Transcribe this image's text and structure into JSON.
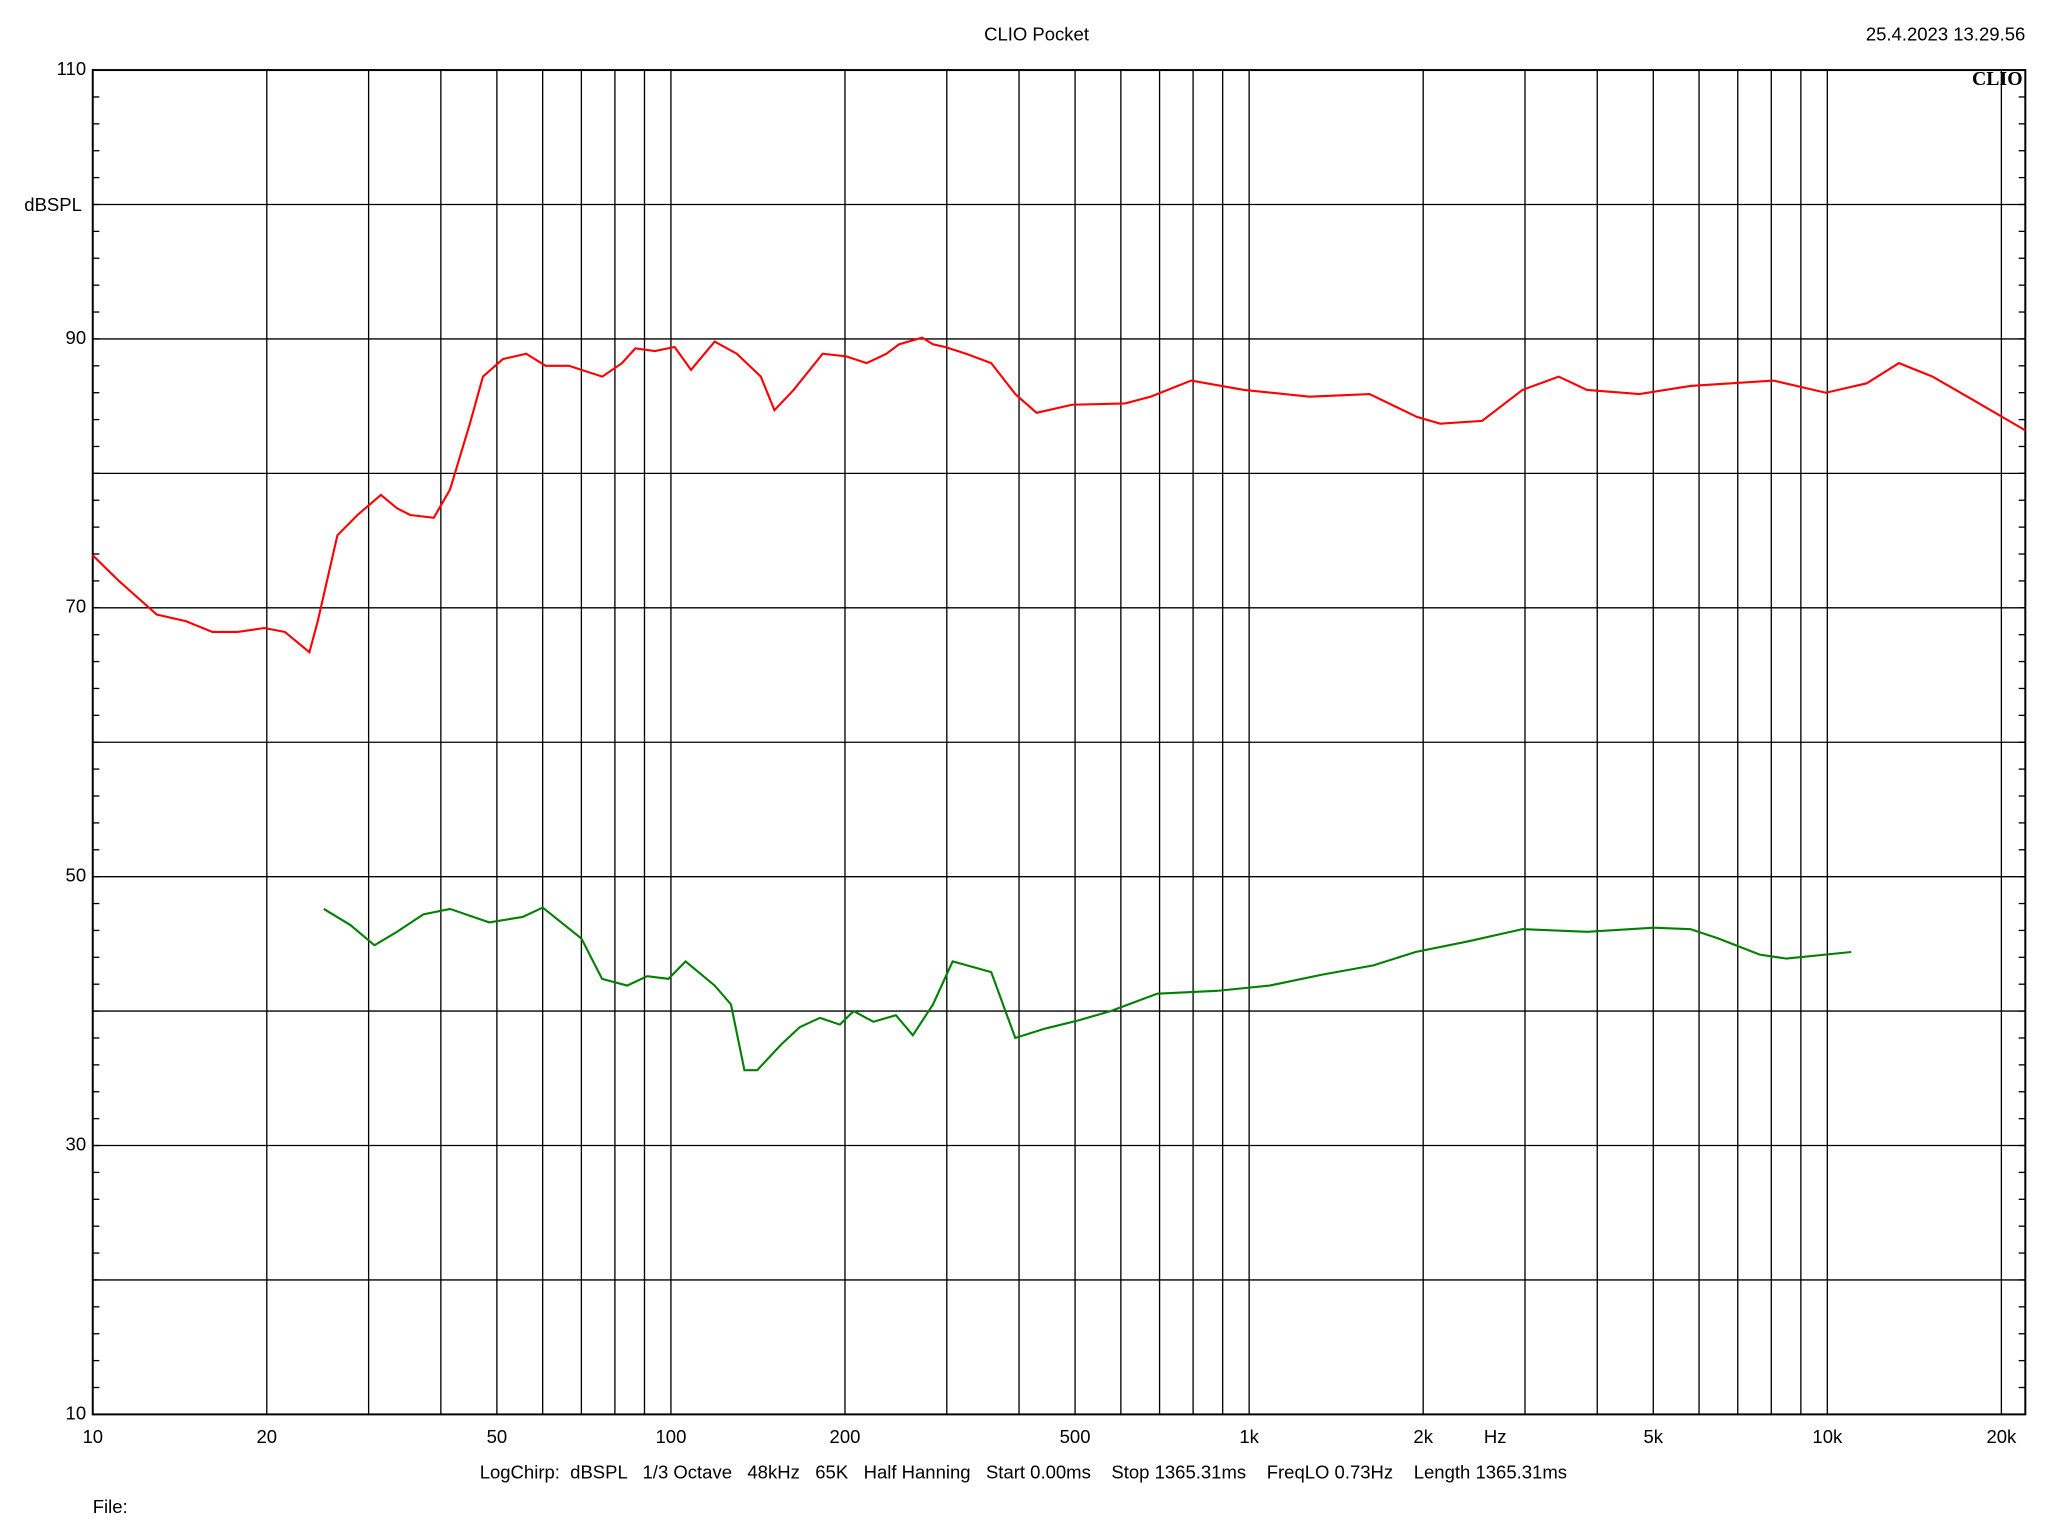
{
  "chart_data": {
    "type": "line",
    "title": "CLIO Pocket",
    "timestamp": "25.4.2023 13.29.56",
    "logo": "CLIO",
    "y_label": "dBSPL",
    "x_label": "Hz",
    "footer": "LogChirp:  dBSPL   1/3 Octave   48kHz   65K   Half Hanning   Start 0.00ms    Stop 1365.31ms    FreqLO 0.73Hz    Length 1365.31ms",
    "file_label": "File:",
    "log_x": true,
    "grid": true,
    "xlim": [
      10,
      22000
    ],
    "xticks": [
      10,
      20,
      50,
      100,
      200,
      500,
      {
        "value": 1000,
        "label": "1k"
      },
      {
        "value": 2000,
        "label": "2k"
      },
      {
        "value": 5000,
        "label": "5k"
      },
      {
        "value": 10000,
        "label": "10k"
      },
      {
        "value": 20000,
        "label": "20k"
      }
    ],
    "xminor": [
      30,
      40,
      60,
      70,
      80,
      90,
      300,
      400,
      600,
      700,
      800,
      900,
      3000,
      4000,
      6000,
      7000,
      8000,
      9000
    ],
    "ylim": [
      10,
      110
    ],
    "yticks": [
      10,
      30,
      50,
      70,
      90,
      110
    ],
    "yminor": [
      20,
      40,
      60,
      80,
      100
    ],
    "series": [
      {
        "color": "#ff0000",
        "x": [
          10,
          11.1,
          12.9,
          14.5,
          16.1,
          17.8,
          19.8,
          21.5,
          23.7,
          24.5,
          26.5,
          28.7,
          31.5,
          33.6,
          35.4,
          38.9,
          41.5,
          44.9,
          47.3,
          51.2,
          56.2,
          60.7,
          66.6,
          76.1,
          82.3,
          86.8,
          93.8,
          101.5,
          108.3,
          119,
          130,
          143,
          151,
          163,
          183,
          201,
          218,
          236,
          248,
          272,
          284,
          298,
          324,
          358,
          394,
          429,
          494,
          610,
          675,
          794,
          980,
          1272,
          1615,
          1950,
          2140,
          2530,
          2970,
          3430,
          3840,
          4730,
          5800,
          8070,
          9940,
          11700,
          13300,
          15200,
          17800,
          22000
        ],
        "values": [
          73.9,
          72.0,
          69.5,
          69.0,
          68.2,
          68.2,
          68.5,
          68.2,
          66.7,
          69.0,
          75.4,
          76.9,
          78.4,
          77.4,
          76.9,
          76.7,
          78.8,
          83.7,
          87.2,
          88.5,
          88.9,
          88.0,
          88.0,
          87.2,
          88.2,
          89.3,
          89.1,
          89.4,
          87.7,
          89.8,
          88.9,
          87.2,
          84.7,
          86.2,
          88.9,
          88.7,
          88.2,
          88.9,
          89.6,
          90.1,
          89.6,
          89.4,
          88.9,
          88.2,
          85.9,
          84.5,
          85.1,
          85.2,
          85.7,
          86.9,
          86.2,
          85.7,
          85.9,
          84.2,
          83.7,
          83.9,
          86.2,
          87.2,
          86.2,
          85.9,
          86.5,
          86.9,
          86.0,
          86.7,
          88.2,
          87.2,
          85.5,
          83.2
        ]
      },
      {
        "color": "#008000",
        "x": [
          25.1,
          27.9,
          30.7,
          33.6,
          37.3,
          41.5,
          48.5,
          55.4,
          60,
          70,
          76,
          84,
          91,
          99,
          106,
          119,
          127,
          134,
          141,
          155,
          167,
          181,
          196,
          207,
          224,
          245,
          262,
          284,
          307,
          358,
          394,
          444,
          506,
          576,
          694,
          880,
          1085,
          1335,
          1640,
          1940,
          2400,
          2970,
          3840,
          5010,
          5800,
          6480,
          7640,
          8500,
          11000
        ],
        "values": [
          47.6,
          46.4,
          44.9,
          45.9,
          47.2,
          47.6,
          46.6,
          47.0,
          47.7,
          45.4,
          42.4,
          41.9,
          42.6,
          42.4,
          43.7,
          41.9,
          40.5,
          35.6,
          35.6,
          37.5,
          38.8,
          39.5,
          39.0,
          40.0,
          39.2,
          39.7,
          38.2,
          40.5,
          43.7,
          42.9,
          38.0,
          38.7,
          39.3,
          40.0,
          41.3,
          41.5,
          41.9,
          42.7,
          43.4,
          44.4,
          45.2,
          46.1,
          45.9,
          46.2,
          46.1,
          45.4,
          44.2,
          43.9,
          44.4
        ]
      }
    ]
  }
}
